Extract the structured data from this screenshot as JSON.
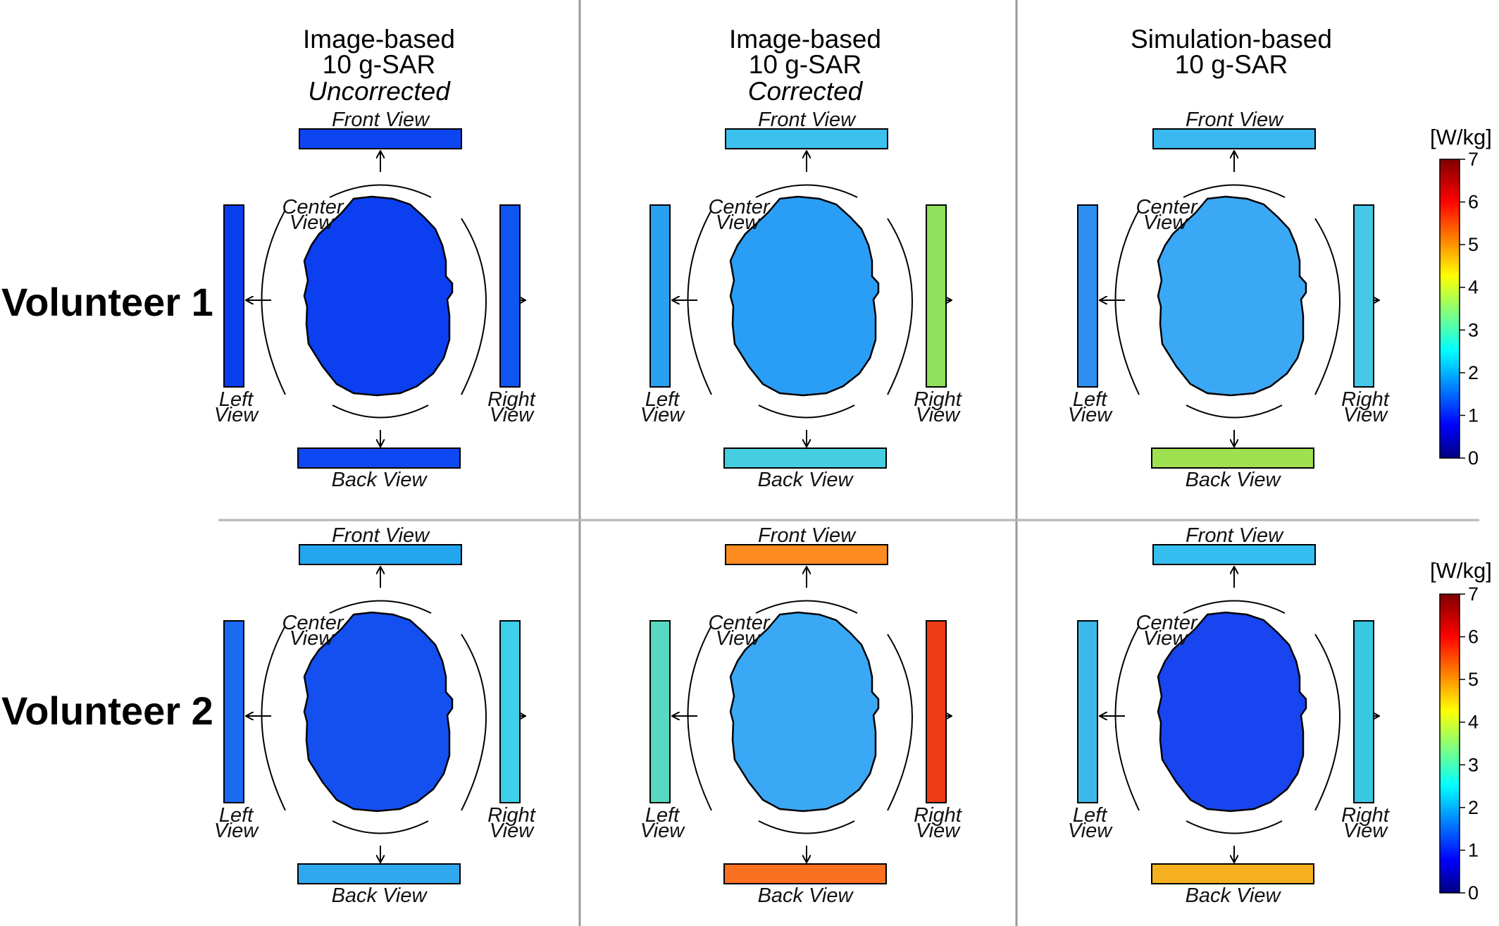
{
  "columns": [
    {
      "title_1": "Image-based",
      "title_2": "10 g-SAR",
      "subtitle": "Uncorrected"
    },
    {
      "title_1": "Image-based",
      "title_2": "10 g-SAR",
      "subtitle": "Corrected"
    },
    {
      "title_1": "Simulation-based",
      "title_2": "10 g-SAR",
      "subtitle": ""
    }
  ],
  "rows": [
    {
      "label": "Volunteer 1"
    },
    {
      "label": "Volunteer 2"
    }
  ],
  "views": {
    "front": "Front View",
    "back": "Back View",
    "center_1": "Center",
    "center_2": "View",
    "left_1": "Left",
    "left_2": "View",
    "right_1": "Right",
    "right_2": "View"
  },
  "colorbar": {
    "unit": "[W/kg]",
    "min": 0,
    "max": 7,
    "ticks": [
      "0",
      "1",
      "2",
      "3",
      "4",
      "5",
      "6",
      "7"
    ],
    "colormap": "jet",
    "colors": [
      "#00007f",
      "#0000ff",
      "#007fff",
      "#00ffff",
      "#7fff7f",
      "#ffff00",
      "#ff7f00",
      "#ff0000",
      "#7f0000"
    ]
  },
  "panel_fills": {
    "v1_uncorrected": {
      "center": "#0b3ff0",
      "front": "#0d45f2",
      "back": "#0d48f2",
      "left": "#0a3ff0",
      "right": "#0f55f0"
    },
    "v1_corrected": {
      "center": "#2a9ef5",
      "front": "#3cc0ee",
      "back": "#45cde0",
      "left": "#2aa0f0",
      "right": "#8fe05a"
    },
    "v1_simulation": {
      "center": "#3aa8f5",
      "front": "#3ab8f0",
      "back": "#9fe050",
      "left": "#2d8ff2",
      "right": "#45c8e8"
    },
    "v2_uncorrected": {
      "center": "#1450f0",
      "front": "#22a6f0",
      "back": "#30a8f0",
      "left": "#1b6af2",
      "right": "#3cd0ea"
    },
    "v2_corrected": {
      "center": "#3aa8f5",
      "front": "#ff8c20",
      "back": "#f87020",
      "left": "#58d8c0",
      "right": "#ee3c18"
    },
    "v2_simulation": {
      "center": "#1845f0",
      "front": "#35bff0",
      "back": "#f5b020",
      "left": "#3ab8e8",
      "right": "#3ac8e0"
    }
  }
}
